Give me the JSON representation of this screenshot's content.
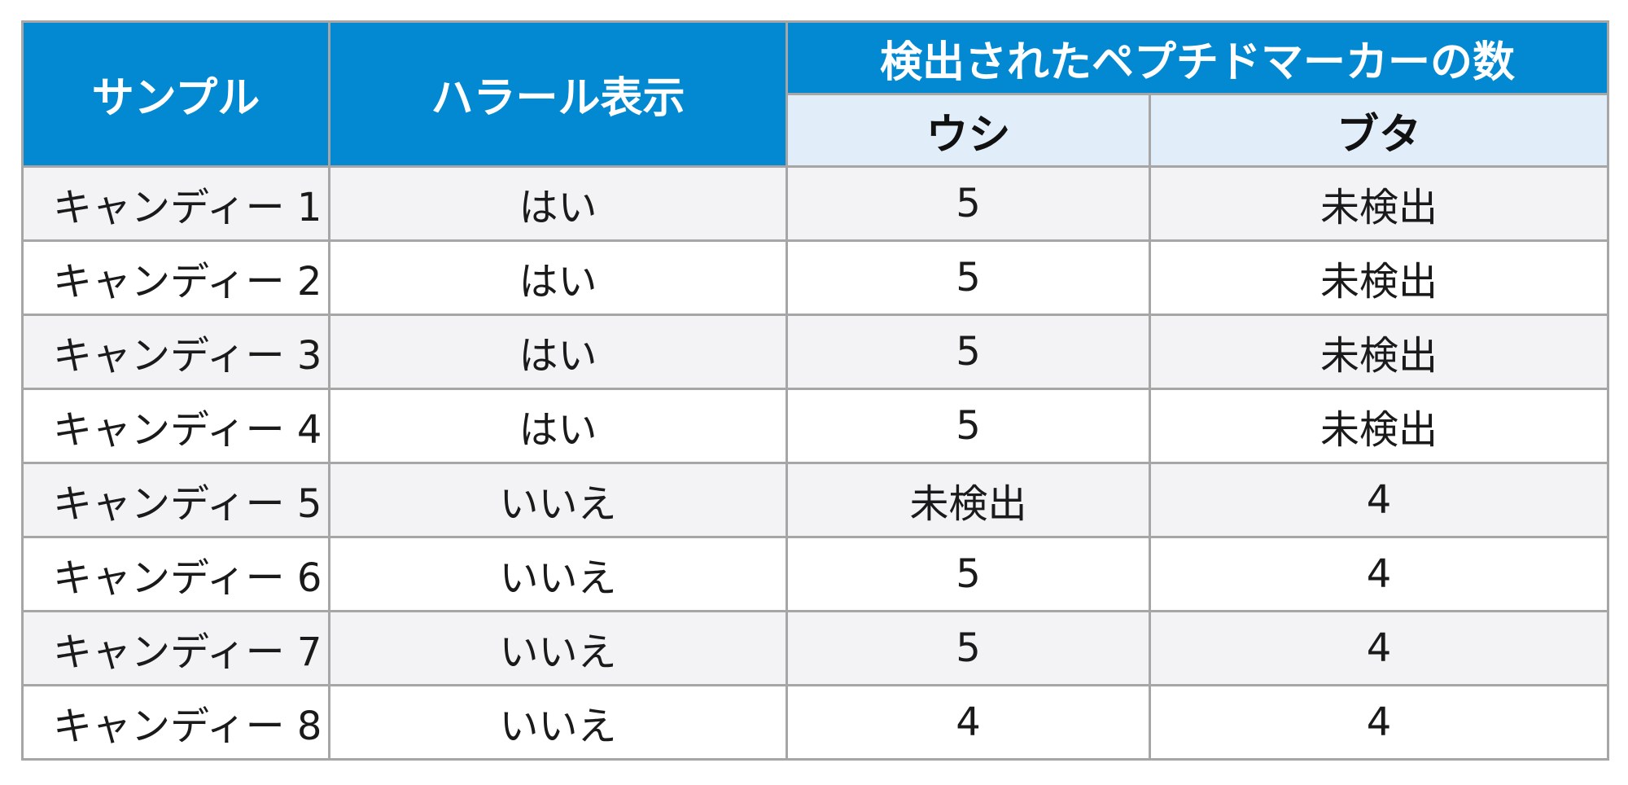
{
  "table": {
    "headers": {
      "sample": "サンプル",
      "halal": "ハラール表示",
      "markers_group": "検出されたペプチドマーカーの数",
      "cow": "ウシ",
      "pig": "ブタ"
    },
    "rows": [
      {
        "sample": "キャンディー 1",
        "halal": "はい",
        "cow": "5",
        "pig": "未検出"
      },
      {
        "sample": "キャンディー 2",
        "halal": "はい",
        "cow": "5",
        "pig": "未検出"
      },
      {
        "sample": "キャンディー 3",
        "halal": "はい",
        "cow": "5",
        "pig": "未検出"
      },
      {
        "sample": "キャンディー 4",
        "halal": "はい",
        "cow": "5",
        "pig": "未検出"
      },
      {
        "sample": "キャンディー 5",
        "halal": "いいえ",
        "cow": "未検出",
        "pig": "4"
      },
      {
        "sample": "キャンディー 6",
        "halal": "いいえ",
        "cow": "5",
        "pig": "4"
      },
      {
        "sample": "キャンディー 7",
        "halal": "いいえ",
        "cow": "5",
        "pig": "4"
      },
      {
        "sample": "キャンディー 8",
        "halal": "いいえ",
        "cow": "4",
        "pig": "4"
      }
    ]
  },
  "colors": {
    "header_blue": "#0289d1",
    "subheader_light": "#e1eef9",
    "row_alt": "#f3f3f5",
    "border": "#a6a6a6"
  }
}
